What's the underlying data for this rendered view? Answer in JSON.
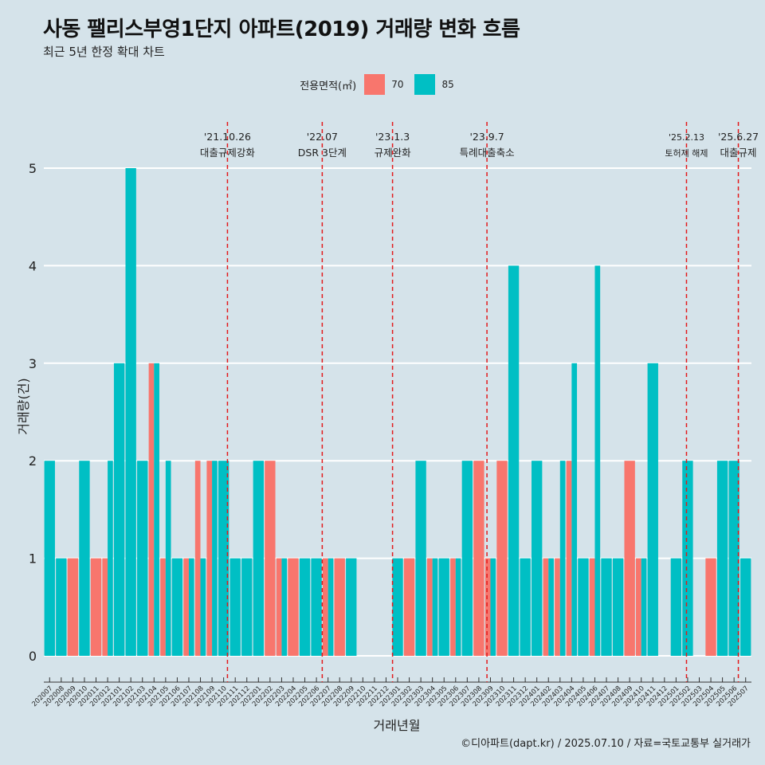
{
  "title": "사동 팰리스부영1단지 아파트(2019) 거래량 변화 흐름",
  "subtitle": "최근 5년 한정 확대 차트",
  "caption": "©디아파트(dapt.kr) / 2025.07.10 / 자료=국토교통부 실거래가",
  "colors": {
    "background": "#d5e3ea",
    "s70": "#f8766d",
    "s85": "#00bfc4",
    "event_line": "#e31a1c",
    "grid": "#ffffff"
  },
  "legend": {
    "title": "전용면적(㎡)",
    "items": [
      "70",
      "85"
    ]
  },
  "chart_data": {
    "type": "bar",
    "title": "사동 팰리스부영1단지 아파트(2019) 거래량 변화 흐름",
    "subtitle": "최근 5년 한정 확대 차트",
    "xlabel": "거래년월",
    "ylabel": "거래량(건)",
    "ylim": [
      0,
      5
    ],
    "yticks": [
      0,
      1,
      2,
      3,
      4,
      5
    ],
    "grid": true,
    "legend_position": "top",
    "categories": [
      "202007",
      "202008",
      "202009",
      "202010",
      "202011",
      "202012",
      "202101",
      "202102",
      "202103",
      "202104",
      "202105",
      "202106",
      "202107",
      "202108",
      "202109",
      "202110",
      "202111",
      "202112",
      "202201",
      "202202",
      "202203",
      "202204",
      "202205",
      "202206",
      "202207",
      "202208",
      "202209",
      "202210",
      "202211",
      "202212",
      "202301",
      "202302",
      "202303",
      "202304",
      "202305",
      "202306",
      "202307",
      "202308",
      "202309",
      "202310",
      "202311",
      "202312",
      "202401",
      "202402",
      "202403",
      "202404",
      "202405",
      "202406",
      "202407",
      "202408",
      "202409",
      "202410",
      "202411",
      "202412",
      "202501",
      "202502",
      "202503",
      "202504",
      "202505",
      "202506",
      "202507"
    ],
    "series": [
      {
        "name": "70",
        "values": [
          0,
          0,
          1,
          0,
          1,
          1,
          0,
          0,
          0,
          3,
          1,
          0,
          1,
          2,
          2,
          0,
          0,
          0,
          0,
          2,
          1,
          1,
          0,
          0,
          1,
          1,
          0,
          0,
          0,
          0,
          0,
          1,
          0,
          1,
          0,
          1,
          0,
          2,
          1,
          2,
          0,
          0,
          0,
          1,
          1,
          2,
          0,
          1,
          0,
          0,
          2,
          1,
          0,
          0,
          0,
          0,
          0,
          1,
          0,
          0,
          0
        ]
      },
      {
        "name": "85",
        "values": [
          2,
          1,
          0,
          2,
          0,
          2,
          3,
          5,
          2,
          3,
          2,
          1,
          1,
          1,
          2,
          2,
          1,
          1,
          2,
          0,
          1,
          0,
          1,
          1,
          1,
          0,
          1,
          0,
          0,
          0,
          1,
          0,
          2,
          1,
          1,
          1,
          2,
          0,
          1,
          0,
          4,
          1,
          2,
          1,
          2,
          3,
          1,
          4,
          1,
          1,
          0,
          1,
          3,
          0,
          1,
          2,
          0,
          0,
          2,
          2,
          1
        ]
      }
    ],
    "events": [
      {
        "date": "'21.10.26",
        "label": "대출규제강화",
        "month": "202110",
        "frac": 0.83
      },
      {
        "date": "'22.07",
        "label": "DSR 3단계",
        "month": "202207",
        "frac": 0.0
      },
      {
        "date": "'23.1.3",
        "label": "규제완화",
        "month": "202301",
        "frac": 0.06
      },
      {
        "date": "'23.9.7",
        "label": "특례대출축소",
        "month": "202309",
        "frac": 0.2
      },
      {
        "date": "'25.2.13",
        "label": "토허제 해제",
        "month": "202502",
        "frac": 0.4,
        "small": true
      },
      {
        "date": "'25.6.27",
        "label": "대출규제",
        "month": "202506",
        "frac": 0.87
      }
    ]
  }
}
